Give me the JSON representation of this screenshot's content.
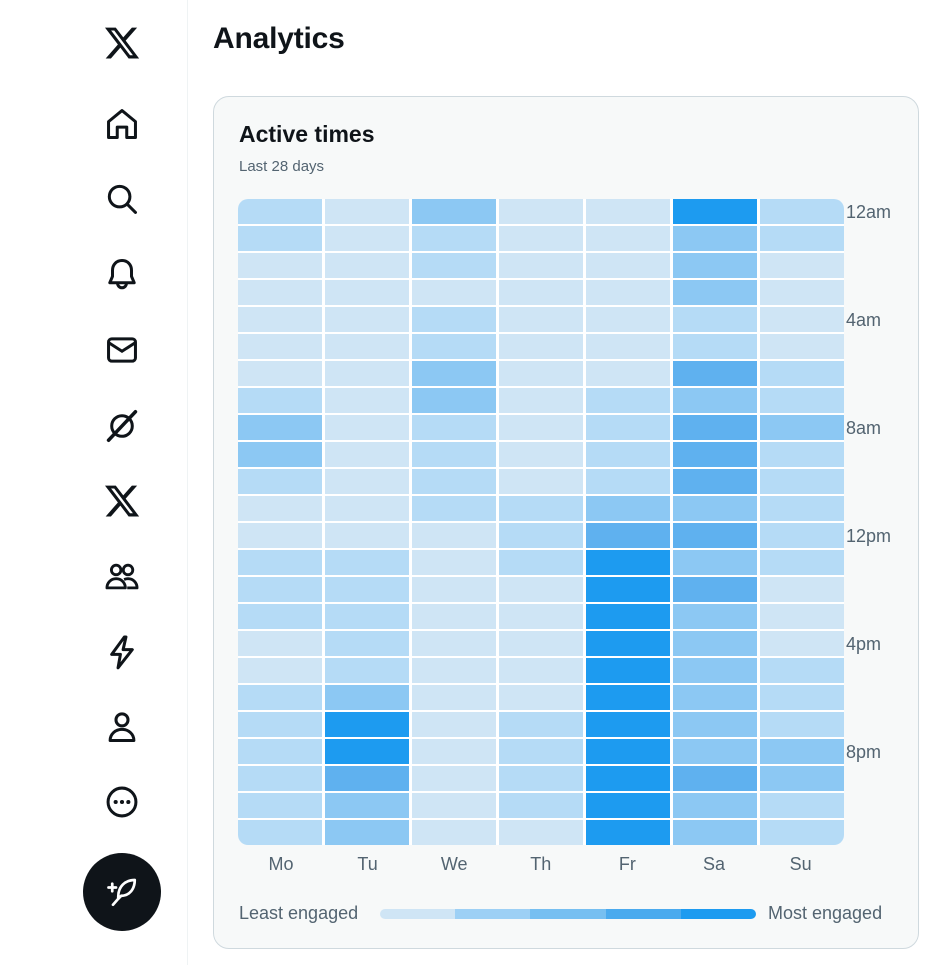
{
  "header": {
    "title": "Analytics"
  },
  "sidebar": {
    "items": [
      {
        "icon": "x-logo-icon",
        "label": "X"
      },
      {
        "icon": "home-icon",
        "label": "Home"
      },
      {
        "icon": "search-icon",
        "label": "Explore"
      },
      {
        "icon": "bell-icon",
        "label": "Notifications"
      },
      {
        "icon": "mail-icon",
        "label": "Messages"
      },
      {
        "icon": "grok-icon",
        "label": "Grok"
      },
      {
        "icon": "x-premium-icon",
        "label": "Premium"
      },
      {
        "icon": "communities-icon",
        "label": "Communities"
      },
      {
        "icon": "lightning-icon",
        "label": "Verified Orgs"
      },
      {
        "icon": "profile-icon",
        "label": "Profile"
      },
      {
        "icon": "more-icon",
        "label": "More"
      }
    ],
    "post_button": {
      "icon": "feather-plus-icon",
      "label": "Post"
    }
  },
  "card": {
    "title": "Active times",
    "subtitle": "Last 28 days"
  },
  "legend": {
    "least": "Least engaged",
    "most": "Most engaged",
    "colors": [
      "#cfe5f5",
      "#9dd0f5",
      "#76bff1",
      "#4aaaee",
      "#1d9bf0"
    ]
  },
  "chart_data": {
    "type": "heatmap",
    "title": "Active times",
    "subtitle": "Last 28 days",
    "days": [
      "Mo",
      "Tu",
      "We",
      "Th",
      "Fr",
      "Sa",
      "Su"
    ],
    "hour_tick_labels": [
      "12am",
      "4am",
      "8am",
      "12pm",
      "4pm",
      "8pm"
    ],
    "hours": 24,
    "scale": "engagement level 1 (least) to 5 (most)",
    "values": [
      [
        2,
        2,
        1,
        1,
        1,
        1,
        1,
        2,
        3,
        3,
        2,
        1,
        1,
        2,
        2,
        2,
        1,
        1,
        2,
        2,
        2,
        2,
        2,
        2
      ],
      [
        1,
        1,
        1,
        1,
        1,
        1,
        1,
        1,
        1,
        1,
        1,
        1,
        1,
        2,
        2,
        2,
        2,
        2,
        3,
        5,
        5,
        4,
        3,
        3
      ],
      [
        3,
        2,
        2,
        1,
        2,
        2,
        3,
        3,
        2,
        2,
        2,
        2,
        1,
        1,
        1,
        1,
        1,
        1,
        1,
        1,
        1,
        1,
        1,
        1
      ],
      [
        1,
        1,
        1,
        1,
        1,
        1,
        1,
        1,
        1,
        1,
        1,
        2,
        2,
        2,
        1,
        1,
        1,
        1,
        1,
        2,
        2,
        2,
        2,
        1
      ],
      [
        1,
        1,
        1,
        1,
        1,
        1,
        1,
        2,
        2,
        2,
        2,
        3,
        4,
        5,
        5,
        5,
        5,
        5,
        5,
        5,
        5,
        5,
        5,
        5
      ],
      [
        5,
        3,
        3,
        3,
        2,
        2,
        4,
        3,
        4,
        4,
        4,
        3,
        4,
        3,
        4,
        3,
        3,
        3,
        3,
        3,
        3,
        4,
        3,
        3
      ],
      [
        2,
        2,
        1,
        1,
        1,
        1,
        2,
        2,
        3,
        2,
        2,
        2,
        2,
        2,
        1,
        1,
        1,
        2,
        2,
        2,
        3,
        3,
        2,
        2
      ]
    ]
  }
}
